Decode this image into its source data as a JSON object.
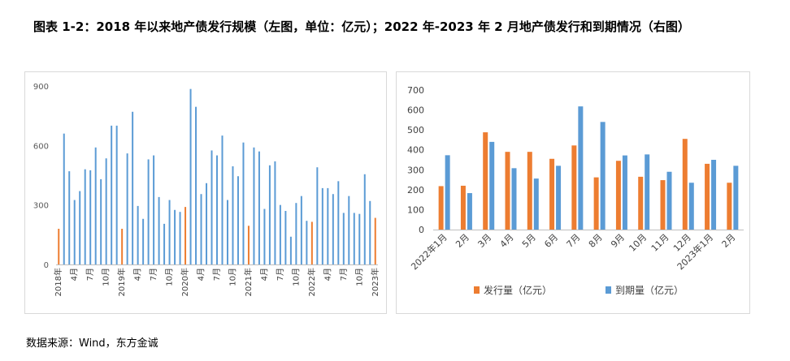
{
  "title": "图表 1-2：2018 年以来地产债发行规模（左图，单位：亿元）；2022 年-2023 年 2 月地产债发行和到期情况（右图）",
  "source": "数据来源：Wind，东方金诚",
  "colors": {
    "blue": "#5b9bd5",
    "orange": "#ed7d31",
    "axis": "#bfbfbf",
    "grid": "#d9d9d9"
  },
  "chart_data": [
    {
      "type": "bar",
      "ylim": [
        0,
        900
      ],
      "yticks": [
        0,
        300,
        600,
        900
      ],
      "xticklabels": [
        "2018年",
        "4月",
        "7月",
        "10月",
        "2019年",
        "4月",
        "7月",
        "10月",
        "2020年",
        "4月",
        "7月",
        "10月",
        "2021年",
        "4月",
        "7月",
        "10月",
        "2022年",
        "4月",
        "7月",
        "10月",
        "2023年"
      ],
      "xtick_positions": [
        0,
        3,
        6,
        9,
        12,
        15,
        18,
        21,
        24,
        27,
        30,
        33,
        36,
        39,
        42,
        45,
        48,
        51,
        54,
        57,
        60
      ],
      "highlight_color_indices": [
        0,
        12,
        24,
        36,
        48,
        60
      ],
      "values": [
        180,
        660,
        470,
        325,
        370,
        480,
        475,
        590,
        430,
        535,
        700,
        700,
        180,
        560,
        770,
        295,
        230,
        530,
        550,
        340,
        205,
        325,
        275,
        265,
        290,
        885,
        795,
        355,
        410,
        575,
        550,
        650,
        325,
        495,
        445,
        615,
        195,
        590,
        570,
        280,
        500,
        520,
        300,
        270,
        140,
        310,
        345,
        220,
        215,
        490,
        385,
        385,
        355,
        420,
        260,
        345,
        260,
        255,
        455,
        320,
        235
      ]
    },
    {
      "type": "bar",
      "categories": [
        "2022年1月",
        "2月",
        "3月",
        "4月",
        "5月",
        "6月",
        "7月",
        "8月",
        "9月",
        "10月",
        "11月",
        "12月",
        "2023年1月",
        "2月"
      ],
      "ylim": [
        0,
        700
      ],
      "yticks": [
        0,
        100,
        200,
        300,
        400,
        500,
        600,
        700
      ],
      "series": [
        {
          "name": "发行量（亿元）",
          "color": "#ed7d31",
          "values": [
            218,
            220,
            488,
            390,
            390,
            355,
            422,
            262,
            345,
            265,
            248,
            455,
            330,
            235
          ]
        },
        {
          "name": "到期量（亿元）",
          "color": "#5b9bd5",
          "values": [
            373,
            183,
            440,
            308,
            256,
            320,
            618,
            540,
            372,
            377,
            290,
            235,
            350,
            320
          ]
        }
      ],
      "legend": "bottom"
    }
  ]
}
